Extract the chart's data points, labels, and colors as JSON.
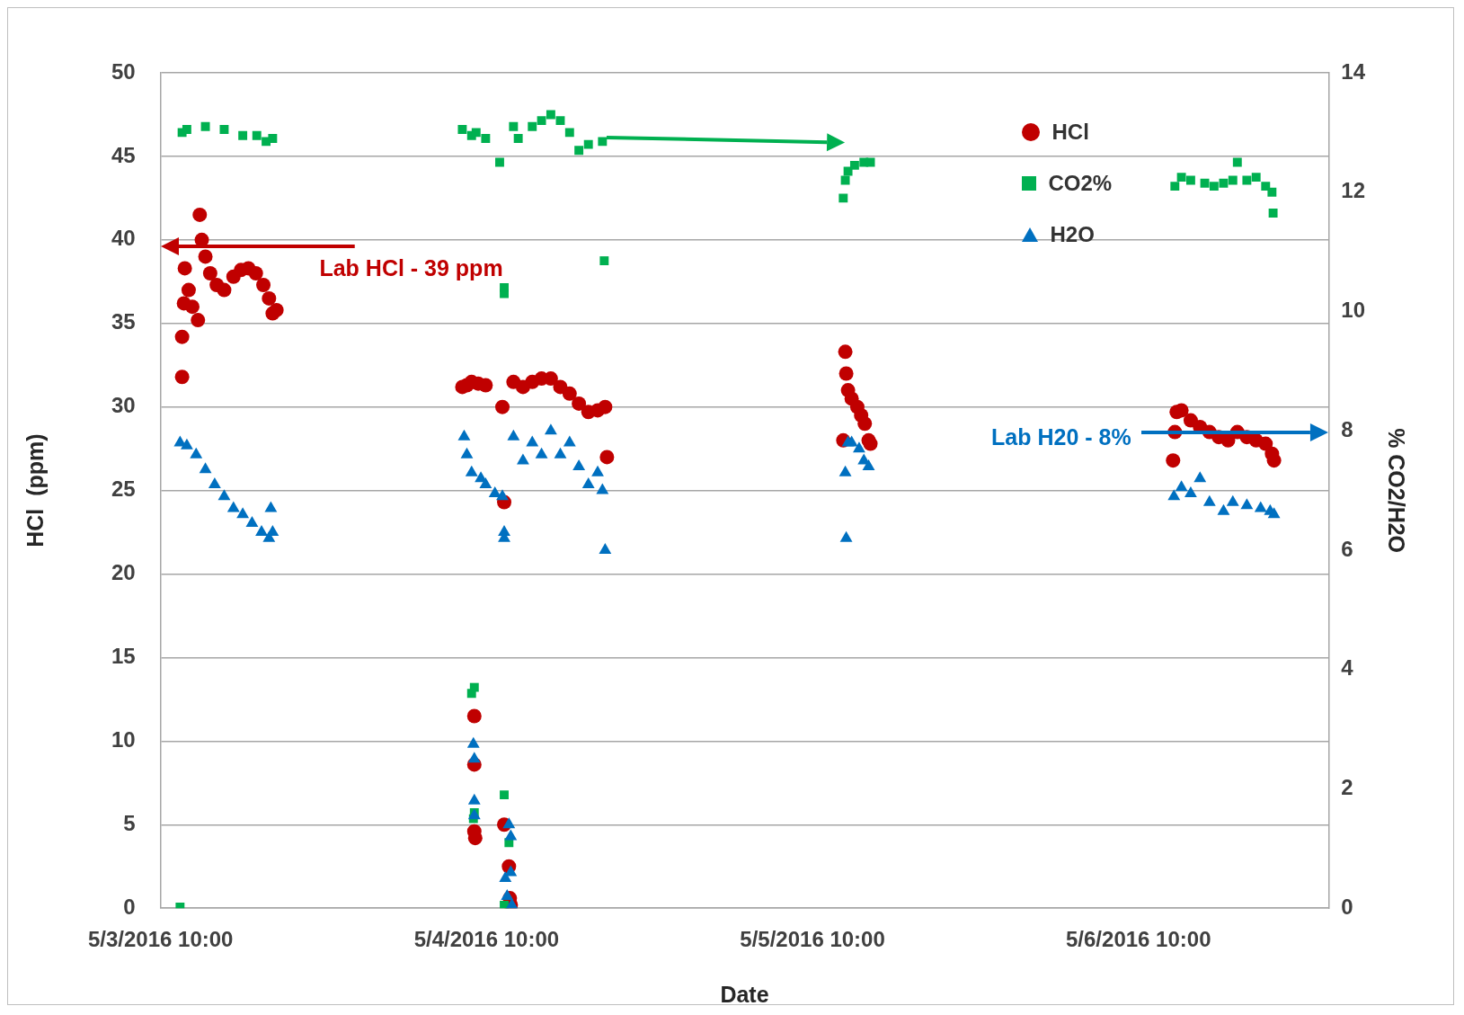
{
  "chart_data": {
    "type": "scatter",
    "xlabel": "Date",
    "ylabel": "HCl  (ppm)",
    "y2label": "% CO2/H2O",
    "xlim": [
      "2016-05-03T10:00",
      "2016-05-07T00:00"
    ],
    "xticks": [
      {
        "value": "2016-05-03T10:00",
        "label": "5/3/2016 10:00"
      },
      {
        "value": "2016-05-04T10:00",
        "label": "5/4/2016 10:00"
      },
      {
        "value": "2016-05-05T10:00",
        "label": "5/5/2016 10:00"
      },
      {
        "value": "2016-05-06T10:00",
        "label": "5/6/2016 10:00"
      }
    ],
    "ylim": [
      0,
      50
    ],
    "yticks": [
      0,
      5,
      10,
      15,
      20,
      25,
      30,
      35,
      40,
      45,
      50
    ],
    "y2lim": [
      0,
      14
    ],
    "y2ticks": [
      0,
      2,
      4,
      6,
      8,
      10,
      12,
      14
    ],
    "grid": "y",
    "legend": "top right",
    "annotations": [
      "Lab HCl - 39 ppm",
      "Lab H20 - 8%"
    ],
    "series": [
      {
        "name": "HCl",
        "color": "#c00000",
        "marker": "circle",
        "x": [
          "2016-05-03T11:35",
          "2016-05-03T11:35",
          "2016-05-03T11:43",
          "2016-05-03T11:47",
          "2016-05-03T12:04",
          "2016-05-03T12:20",
          "2016-05-03T12:45",
          "2016-05-03T12:53",
          "2016-05-03T13:02",
          "2016-05-03T13:18",
          "2016-05-03T13:39",
          "2016-05-03T14:08",
          "2016-05-03T14:41",
          "2016-05-03T15:22",
          "2016-05-03T15:55",
          "2016-05-03T16:28",
          "2016-05-03T17:01",
          "2016-05-03T17:34",
          "2016-05-03T17:59",
          "2016-05-03T18:15",
          "2016-05-03T18:32",
          "2016-05-04T08:13",
          "2016-05-04T08:33",
          "2016-05-04T08:54",
          "2016-05-04T09:06",
          "2016-05-04T09:06",
          "2016-05-04T09:06",
          "2016-05-04T09:10",
          "2016-05-04T09:23",
          "2016-05-04T09:56",
          "2016-05-04T11:10",
          "2016-05-04T11:18",
          "2016-05-04T11:18",
          "2016-05-04T11:39",
          "2016-05-04T11:43",
          "2016-05-04T11:47",
          "2016-05-04T11:59",
          "2016-05-04T12:41",
          "2016-05-04T13:22",
          "2016-05-04T14:03",
          "2016-05-04T14:44",
          "2016-05-04T15:26",
          "2016-05-04T16:07",
          "2016-05-04T16:48",
          "2016-05-04T17:30",
          "2016-05-04T18:11",
          "2016-05-04T18:44",
          "2016-05-04T18:52",
          "2016-05-05T12:16",
          "2016-05-05T12:25",
          "2016-05-05T12:29",
          "2016-05-05T12:37",
          "2016-05-05T12:53",
          "2016-05-05T13:18",
          "2016-05-05T13:35",
          "2016-05-05T13:51",
          "2016-05-05T14:08",
          "2016-05-05T14:16",
          "2016-05-06T12:33",
          "2016-05-06T12:41",
          "2016-05-06T12:49",
          "2016-05-06T13:10",
          "2016-05-06T13:51",
          "2016-05-06T14:32",
          "2016-05-06T15:14",
          "2016-05-06T15:55",
          "2016-05-06T16:36",
          "2016-05-06T17:17",
          "2016-05-06T17:59",
          "2016-05-06T18:40",
          "2016-05-06T19:22",
          "2016-05-06T19:50",
          "2016-05-06T19:59"
        ],
        "values": [
          31.8,
          34.2,
          36.2,
          38.3,
          37,
          36,
          35.2,
          41.5,
          40,
          39,
          38,
          37.3,
          37,
          37.8,
          38.2,
          38.3,
          38,
          37.3,
          36.5,
          35.6,
          35.8,
          31.2,
          31.3,
          31.5,
          11.5,
          8.6,
          4.6,
          4.2,
          31.4,
          31.3,
          30,
          24.3,
          5,
          2.5,
          0.6,
          0.2,
          31.5,
          31.2,
          31.5,
          31.7,
          31.7,
          31.2,
          30.8,
          30.2,
          29.7,
          29.8,
          30,
          27,
          28,
          33.3,
          32,
          31,
          30.5,
          30,
          29.5,
          29,
          28,
          27.8,
          26.8,
          28.5,
          29.7,
          29.8,
          29.2,
          28.8,
          28.5,
          28.2,
          28,
          28.5,
          28.2,
          28,
          27.8,
          27.2,
          26.8
        ]
      },
      {
        "name": "CO2%",
        "color": "#00b050",
        "marker": "square",
        "axis": "y2",
        "x": [
          "2016-05-03T11:26",
          "2016-05-03T11:35",
          "2016-05-03T11:56",
          "2016-05-03T13:18",
          "2016-05-03T14:41",
          "2016-05-03T16:03",
          "2016-05-03T17:05",
          "2016-05-03T17:46",
          "2016-05-03T18:15",
          "2016-05-04T08:13",
          "2016-05-04T08:54",
          "2016-05-04T08:54",
          "2016-05-04T09:06",
          "2016-05-04T09:02",
          "2016-05-04T09:06",
          "2016-05-04T09:14",
          "2016-05-04T09:56",
          "2016-05-04T10:58",
          "2016-05-04T11:18",
          "2016-05-04T11:18",
          "2016-05-04T11:18",
          "2016-05-04T11:18",
          "2016-05-04T11:39",
          "2016-05-04T11:59",
          "2016-05-04T12:20",
          "2016-05-04T13:22",
          "2016-05-04T14:03",
          "2016-05-04T14:44",
          "2016-05-04T15:26",
          "2016-05-04T16:07",
          "2016-05-04T16:48",
          "2016-05-04T17:30",
          "2016-05-04T18:32",
          "2016-05-04T18:40",
          "2016-05-05T12:16",
          "2016-05-05T12:25",
          "2016-05-05T12:37",
          "2016-05-05T13:06",
          "2016-05-05T13:47",
          "2016-05-05T14:16",
          "2016-05-06T12:41",
          "2016-05-06T13:10",
          "2016-05-06T13:51",
          "2016-05-06T14:53",
          "2016-05-06T15:34",
          "2016-05-06T16:16",
          "2016-05-06T16:57",
          "2016-05-06T17:17",
          "2016-05-06T17:59",
          "2016-05-06T18:40",
          "2016-05-06T19:22",
          "2016-05-06T19:50",
          "2016-05-06T19:55"
        ],
        "values": [
          0.02,
          13.0,
          13.05,
          13.1,
          13.05,
          12.95,
          12.95,
          12.85,
          12.9,
          13.05,
          12.95,
          3.6,
          3.7,
          1.5,
          1.6,
          13,
          12.9,
          12.5,
          10.3,
          10.4,
          1.9,
          0.05,
          1.1,
          13.1,
          12.9,
          13.1,
          13.2,
          13.3,
          13.2,
          13.0,
          12.7,
          12.8,
          12.85,
          10.85,
          11.9,
          12.2,
          12.35,
          12.45,
          12.5,
          12.5,
          12.1,
          12.25,
          12.2,
          12.15,
          12.1,
          12.15,
          12.2,
          12.5,
          12.2,
          12.25,
          12.1,
          12.0,
          11.65
        ]
      },
      {
        "name": "H2O",
        "color": "#0070c0",
        "marker": "triangle",
        "axis": "y2",
        "x": [
          "2016-05-03T11:26",
          "2016-05-03T11:56",
          "2016-05-03T12:37",
          "2016-05-03T13:18",
          "2016-05-03T13:59",
          "2016-05-03T14:41",
          "2016-05-03T15:22",
          "2016-05-03T16:03",
          "2016-05-03T16:44",
          "2016-05-03T17:26",
          "2016-05-03T17:59",
          "2016-05-03T18:07",
          "2016-05-03T18:15",
          "2016-05-04T08:21",
          "2016-05-04T08:33",
          "2016-05-04T08:54",
          "2016-05-04T09:02",
          "2016-05-04T09:06",
          "2016-05-04T09:06",
          "2016-05-04T09:06",
          "2016-05-04T09:35",
          "2016-05-04T09:56",
          "2016-05-04T10:37",
          "2016-05-04T11:10",
          "2016-05-04T11:18",
          "2016-05-04T11:18",
          "2016-05-04T11:23",
          "2016-05-04T11:31",
          "2016-05-04T11:39",
          "2016-05-04T11:47",
          "2016-05-04T11:47",
          "2016-05-04T11:52",
          "2016-05-04T11:59",
          "2016-05-04T12:41",
          "2016-05-04T13:22",
          "2016-05-04T14:03",
          "2016-05-04T14:44",
          "2016-05-04T15:26",
          "2016-05-04T16:07",
          "2016-05-04T16:48",
          "2016-05-04T17:30",
          "2016-05-04T18:11",
          "2016-05-04T18:32",
          "2016-05-04T18:44",
          "2016-05-05T12:25",
          "2016-05-05T12:29",
          "2016-05-05T12:37",
          "2016-05-05T12:53",
          "2016-05-05T13:26",
          "2016-05-05T13:47",
          "2016-05-05T14:08",
          "2016-05-06T12:37",
          "2016-05-06T13:10",
          "2016-05-06T13:51",
          "2016-05-06T14:32",
          "2016-05-06T15:14",
          "2016-05-06T16:16",
          "2016-05-06T16:57",
          "2016-05-06T17:59",
          "2016-05-06T19:00",
          "2016-05-06T19:42",
          "2016-05-06T19:59"
        ],
        "values": [
          7.8,
          7.75,
          7.6,
          7.35,
          7.1,
          6.9,
          6.7,
          6.6,
          6.45,
          6.3,
          6.2,
          6.7,
          6.3,
          7.9,
          7.6,
          7.3,
          2.75,
          2.5,
          1.8,
          1.55,
          7.2,
          7.1,
          6.95,
          6.9,
          6.3,
          6.2,
          0.5,
          0.2,
          1.4,
          1.2,
          0.6,
          0.05,
          7.9,
          7.5,
          7.8,
          7.6,
          8.0,
          7.6,
          7.8,
          7.4,
          7.1,
          7.3,
          7.0,
          6.0,
          7.3,
          6.2,
          7.8,
          7.8,
          7.7,
          7.5,
          7.4,
          6.9,
          7.05,
          6.95,
          7.2,
          6.8,
          6.65,
          6.8,
          6.75,
          6.7,
          6.65,
          6.6
        ]
      }
    ]
  }
}
